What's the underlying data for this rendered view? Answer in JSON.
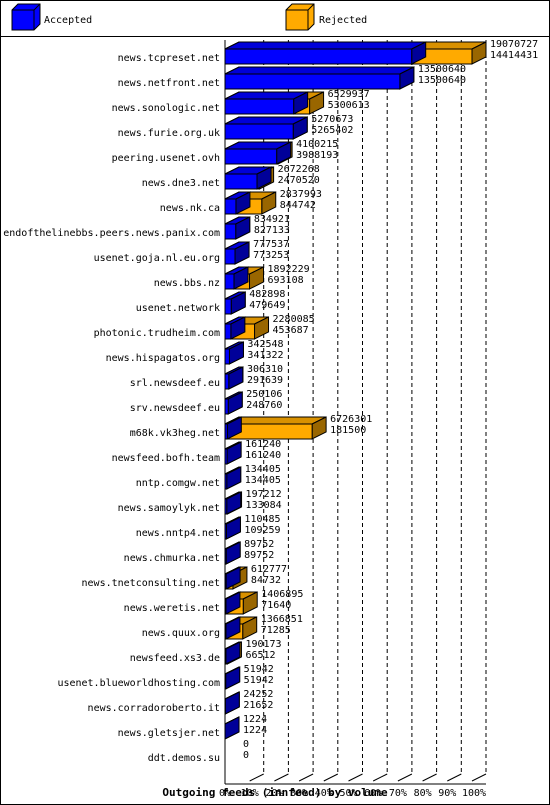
{
  "chart_data": {
    "type": "bar",
    "orientation": "horizontal",
    "title": "Outgoing feeds (innfeed) by volume",
    "legend": {
      "placement": "top",
      "entries": [
        {
          "name": "Accepted",
          "color": "#0000ff"
        },
        {
          "name": "Rejected",
          "color": "#ffaa00"
        }
      ]
    },
    "x_ticks": [
      "0%",
      "10%",
      "20%",
      "30%",
      "40%",
      "50%",
      "60%",
      "70%",
      "80%",
      "90%",
      "100%"
    ],
    "xlim": [
      0,
      100
    ],
    "grid": true,
    "categories": [
      "news.tcpreset.net",
      "news.netfront.net",
      "news.sonologic.net",
      "news.furie.org.uk",
      "peering.usenet.ovh",
      "news.dne3.net",
      "news.nk.ca",
      "endofthelinebbs.peers.news.panix.com",
      "usenet.goja.nl.eu.org",
      "news.bbs.nz",
      "usenet.network",
      "photonic.trudheim.com",
      "news.hispagatos.org",
      "srl.newsdeef.eu",
      "srv.newsdeef.eu",
      "m68k.vk3heg.net",
      "newsfeed.bofh.team",
      "nntp.comgw.net",
      "news.samoylyk.net",
      "news.nntp4.net",
      "news.chmurka.net",
      "news.tnetconsulting.net",
      "news.weretis.net",
      "news.quux.org",
      "newsfeed.xs3.de",
      "usenet.blueworldhosting.com",
      "news.corradoroberto.it",
      "news.gletsjer.net",
      "ddt.demos.su"
    ],
    "series": [
      {
        "name": "Rejected",
        "values": [
          19070727,
          13500640,
          6529937,
          5270673,
          4100215,
          2672268,
          2837993,
          834921,
          777537,
          1892229,
          482898,
          2280085,
          342548,
          306310,
          250106,
          6726301,
          161240,
          134405,
          197212,
          110485,
          89752,
          612777,
          1406895,
          1366851,
          190173,
          51942,
          24252,
          1224,
          0
        ]
      },
      {
        "name": "Accepted",
        "values": [
          14414431,
          13500640,
          5300613,
          5265402,
          3988193,
          2470520,
          844742,
          827133,
          773253,
          693108,
          479649,
          453687,
          341322,
          291639,
          248760,
          181500,
          161240,
          134405,
          133084,
          109259,
          89752,
          84732,
          71640,
          71285,
          66512,
          51942,
          21652,
          1224,
          0
        ]
      }
    ]
  }
}
